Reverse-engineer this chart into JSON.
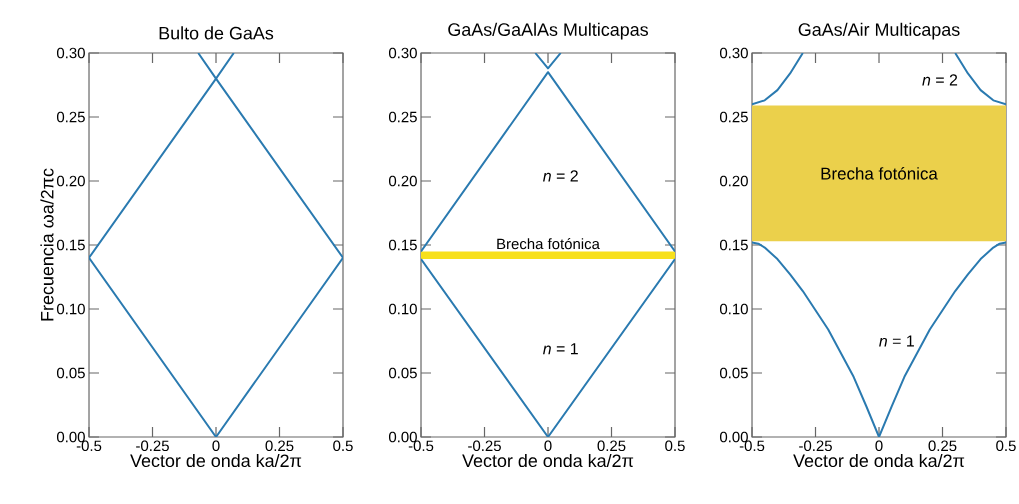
{
  "chart_data": [
    {
      "type": "line",
      "title": "Bulto de GaAs",
      "xlabel": "Vector de onda ka/2π",
      "ylabel": "Frecuencia ωa/2πc",
      "xlim": [
        -0.5,
        0.5
      ],
      "ylim": [
        0,
        0.3
      ],
      "xticks": [
        -0.5,
        -0.25,
        0,
        0.25,
        0.5
      ],
      "yticks": [
        {
          "value": 0,
          "label": "0.00"
        },
        {
          "value": 0.05,
          "label": "0.05"
        },
        {
          "value": 0.1,
          "label": "0.10"
        },
        {
          "value": 0.15,
          "label": "0.15"
        },
        {
          "value": 0.2,
          "label": "0.20"
        },
        {
          "value": 0.25,
          "label": "0.25"
        },
        {
          "value": 0.3,
          "label": "0.30"
        }
      ],
      "series": [
        {
          "color": "#2a7ab0",
          "x": [
            -0.5,
            0,
            0.5
          ],
          "values": [
            0.14,
            0,
            0.14
          ]
        },
        {
          "color": "#2a7ab0",
          "x": [
            -0.5,
            0,
            0.07
          ],
          "values": [
            0.14,
            0.28,
            0.3
          ]
        },
        {
          "color": "#2a7ab0",
          "x": [
            -0.07,
            0,
            0.5
          ],
          "values": [
            0.3,
            0.28,
            0.14
          ]
        }
      ]
    },
    {
      "type": "line",
      "title": "GaAs/GaAlAs Multicapas",
      "xlabel": "Vector de onda ka/2π",
      "xlim": [
        -0.5,
        0.5
      ],
      "ylim": [
        0,
        0.3
      ],
      "xticks": [
        -0.5,
        -0.25,
        0,
        0.25,
        0.5
      ],
      "yticks": [
        {
          "value": 0,
          "label": "0.00"
        },
        {
          "value": 0.05,
          "label": "0.05"
        },
        {
          "value": 0.1,
          "label": "0.10"
        },
        {
          "value": 0.15,
          "label": "0.15"
        },
        {
          "value": 0.2,
          "label": "0.20"
        },
        {
          "value": 0.25,
          "label": "0.25"
        },
        {
          "value": 0.3,
          "label": "0.30"
        }
      ],
      "bands": [
        {
          "axis": "y",
          "from": 0.139,
          "to": 0.145,
          "label": "Brecha fotónica",
          "color": "#f7e01c"
        }
      ],
      "annotations": [
        "*n* = 2",
        "*n* = 1"
      ],
      "series": [
        {
          "color": "#2a7ab0",
          "x": [
            -0.5,
            0,
            0.5
          ],
          "values": [
            0.139,
            0,
            0.139
          ]
        },
        {
          "color": "#2a7ab0",
          "x": [
            -0.5,
            0,
            0.5
          ],
          "values": [
            0.145,
            0.285,
            0.145
          ]
        },
        {
          "color": "#2a7ab0",
          "x": [
            -0.05,
            0,
            0.05
          ],
          "values": [
            0.3,
            0.288,
            0.3
          ]
        }
      ]
    },
    {
      "type": "line",
      "title": "GaAs/Air Multicapas",
      "xlabel": "Vector de onda ka/2π",
      "xlim": [
        -0.5,
        0.5
      ],
      "ylim": [
        0,
        0.3
      ],
      "xticks": [
        -0.5,
        -0.25,
        0,
        0.25,
        0.5
      ],
      "yticks": [
        {
          "value": 0,
          "label": "0.00"
        },
        {
          "value": 0.05,
          "label": "0.05"
        },
        {
          "value": 0.1,
          "label": "0.10"
        },
        {
          "value": 0.15,
          "label": "0.15"
        },
        {
          "value": 0.2,
          "label": "0.20"
        },
        {
          "value": 0.25,
          "label": "0.25"
        },
        {
          "value": 0.3,
          "label": "0.30"
        }
      ],
      "bands": [
        {
          "axis": "y",
          "from": 0.153,
          "to": 0.259,
          "label": "Brecha fotónica",
          "color": "#ebd04b"
        }
      ],
      "annotations": [
        "*n* = 2",
        "*n* = 1"
      ],
      "series": [
        {
          "color": "#2a7ab0",
          "x": [
            -0.5,
            -0.475,
            -0.45,
            -0.4,
            -0.35,
            -0.3,
            -0.2,
            -0.1,
            -0.05,
            0,
            0.05,
            0.1,
            0.2,
            0.3,
            0.35,
            0.4,
            0.45,
            0.475,
            0.5
          ],
          "values": [
            0.152,
            0.151,
            0.148,
            0.139,
            0.127,
            0.114,
            0.084,
            0.047,
            0.024,
            0,
            0.024,
            0.047,
            0.084,
            0.114,
            0.127,
            0.139,
            0.148,
            0.151,
            0.152
          ]
        },
        {
          "color": "#2a7ab0",
          "x": [
            -0.5,
            -0.45,
            -0.4,
            -0.35,
            -0.3
          ],
          "values": [
            0.26,
            0.263,
            0.271,
            0.284,
            0.3
          ]
        },
        {
          "color": "#2a7ab0",
          "x": [
            0.3,
            0.35,
            0.4,
            0.45,
            0.5
          ],
          "values": [
            0.3,
            0.284,
            0.271,
            0.263,
            0.26
          ]
        }
      ]
    }
  ]
}
